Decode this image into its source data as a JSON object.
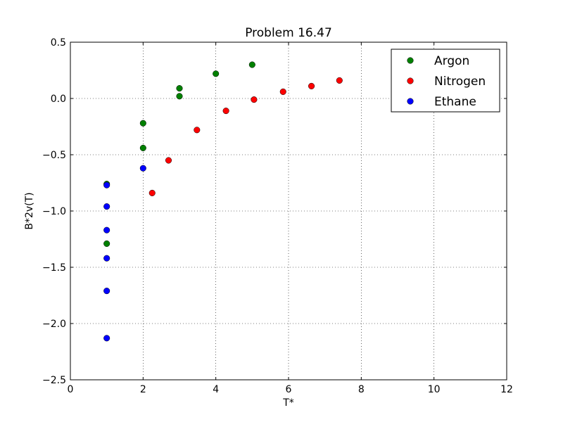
{
  "chart_data": {
    "type": "scatter",
    "title": "Problem 16.47",
    "xlabel": "T*",
    "ylabel": "B*2v(T)",
    "xlim": [
      0,
      12
    ],
    "ylim": [
      -2.5,
      0.5
    ],
    "xticks": [
      0,
      2,
      4,
      6,
      8,
      10,
      12
    ],
    "xtick_labels": [
      "0",
      "2",
      "4",
      "6",
      "8",
      "10",
      "12"
    ],
    "yticks": [
      -2.5,
      -2.0,
      -1.5,
      -1.0,
      -0.5,
      0.0,
      0.5
    ],
    "ytick_labels": [
      "−2.5",
      "−2.0",
      "−1.5",
      "−1.0",
      "−0.5",
      "0.0",
      "0.5"
    ],
    "grid": true,
    "legend_position": "top-right",
    "series": [
      {
        "name": "Argon",
        "color": "#008000",
        "x": [
          1,
          1,
          2,
          2,
          3,
          3,
          4,
          5
        ],
        "y": [
          -0.76,
          -1.29,
          -0.22,
          -0.44,
          0.09,
          0.02,
          0.22,
          0.3
        ]
      },
      {
        "name": "Nitrogen",
        "color": "#ff0000",
        "x": [
          2.25,
          2.7,
          3.48,
          4.28,
          5.05,
          5.85,
          6.63,
          7.4
        ],
        "y": [
          -0.84,
          -0.55,
          -0.28,
          -0.11,
          -0.01,
          0.06,
          0.11,
          0.16
        ]
      },
      {
        "name": "Ethane",
        "color": "#0000ff",
        "x": [
          1,
          1,
          1,
          1,
          1,
          1,
          2
        ],
        "y": [
          -0.77,
          -0.96,
          -1.17,
          -1.42,
          -1.71,
          -2.13,
          -0.62
        ]
      }
    ]
  }
}
